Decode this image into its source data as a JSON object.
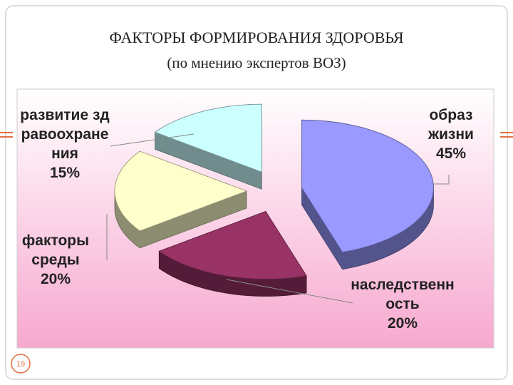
{
  "title": "ФАКТОРЫ ФОРМИРОВАНИЯ ЗДОРОВЬЯ",
  "subtitle": "(по мнению экспертов ВОЗ)",
  "page_number": "19",
  "chart_data": {
    "type": "pie",
    "categories": [
      "образ жизни",
      "наследственность",
      "факторы среды",
      "развитие здравоохранения"
    ],
    "values": [
      45,
      20,
      20,
      15
    ],
    "value_labels": [
      "45%",
      "20%",
      "20%",
      "15%"
    ],
    "colors": [
      "#9999ff",
      "#993366",
      "#ffffcc",
      "#ccffff"
    ]
  }
}
